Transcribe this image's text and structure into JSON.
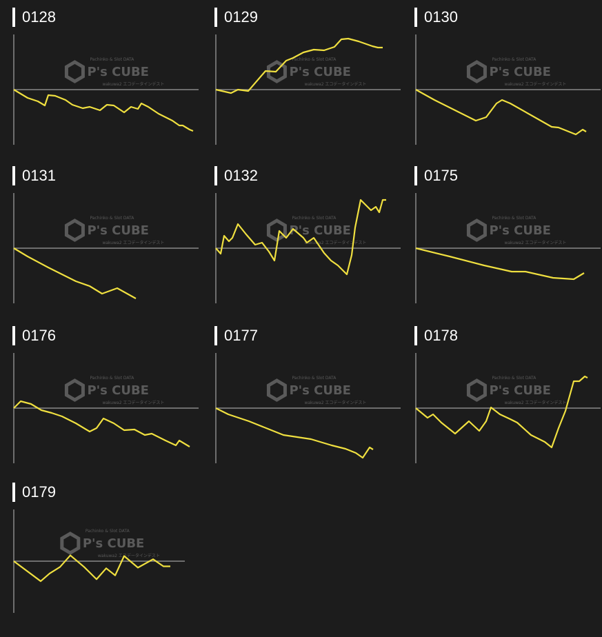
{
  "colors": {
    "background": "#1c1c1c",
    "line": "#f0e040",
    "axis": "#8a8a8a",
    "title": "#ffffff",
    "watermark": "#5a5a5a"
  },
  "watermark": {
    "brand": "P's CUBE",
    "top": "Pachinko & Slot DATA",
    "bottom": "wakuwa2 エコデータインデスト"
  },
  "chart_data": [
    {
      "type": "line",
      "title": "0128",
      "ylim": [
        -80,
        80
      ],
      "grid": false,
      "points": [
        [
          0,
          0
        ],
        [
          20,
          -12
        ],
        [
          35,
          -17
        ],
        [
          45,
          -23
        ],
        [
          50,
          -8
        ],
        [
          60,
          -9
        ],
        [
          75,
          -15
        ],
        [
          85,
          -22
        ],
        [
          100,
          -27
        ],
        [
          110,
          -25
        ],
        [
          125,
          -30
        ],
        [
          135,
          -22
        ],
        [
          145,
          -23
        ],
        [
          160,
          -33
        ],
        [
          170,
          -25
        ],
        [
          180,
          -28
        ],
        [
          185,
          -20
        ],
        [
          195,
          -25
        ],
        [
          210,
          -35
        ],
        [
          230,
          -45
        ],
        [
          240,
          -52
        ],
        [
          245,
          -52
        ],
        [
          255,
          -58
        ],
        [
          260,
          -60
        ]
      ]
    },
    {
      "type": "line",
      "title": "0129",
      "ylim": [
        -80,
        80
      ],
      "grid": false,
      "points": [
        [
          0,
          0
        ],
        [
          22,
          -5
        ],
        [
          32,
          0
        ],
        [
          47,
          -2
        ],
        [
          72,
          27
        ],
        [
          87,
          26
        ],
        [
          102,
          42
        ],
        [
          112,
          46
        ],
        [
          127,
          54
        ],
        [
          142,
          58
        ],
        [
          157,
          57
        ],
        [
          172,
          62
        ],
        [
          182,
          73
        ],
        [
          192,
          74
        ],
        [
          207,
          70
        ],
        [
          227,
          63
        ],
        [
          235,
          61
        ],
        [
          242,
          61
        ]
      ]
    },
    {
      "type": "line",
      "title": "0130",
      "ylim": [
        -80,
        80
      ],
      "grid": false,
      "points": [
        [
          0,
          0
        ],
        [
          27,
          -15
        ],
        [
          57,
          -30
        ],
        [
          87,
          -45
        ],
        [
          102,
          -40
        ],
        [
          117,
          -20
        ],
        [
          125,
          -15
        ],
        [
          137,
          -20
        ],
        [
          167,
          -37
        ],
        [
          197,
          -54
        ],
        [
          207,
          -55
        ],
        [
          232,
          -65
        ],
        [
          242,
          -58
        ],
        [
          247,
          -61
        ]
      ]
    },
    {
      "type": "line",
      "title": "0131",
      "ylim": [
        -80,
        80
      ],
      "grid": false,
      "points": [
        [
          0,
          0
        ],
        [
          20,
          -12
        ],
        [
          50,
          -28
        ],
        [
          90,
          -48
        ],
        [
          110,
          -55
        ],
        [
          128,
          -66
        ],
        [
          150,
          -58
        ],
        [
          177,
          -73
        ]
      ]
    },
    {
      "type": "line",
      "title": "0132",
      "ylim": [
        -80,
        80
      ],
      "grid": false,
      "points": [
        [
          0,
          0
        ],
        [
          7,
          -8
        ],
        [
          12,
          18
        ],
        [
          19,
          10
        ],
        [
          24,
          15
        ],
        [
          32,
          35
        ],
        [
          44,
          20
        ],
        [
          57,
          5
        ],
        [
          67,
          8
        ],
        [
          77,
          -5
        ],
        [
          85,
          -18
        ],
        [
          92,
          25
        ],
        [
          102,
          15
        ],
        [
          112,
          28
        ],
        [
          127,
          15
        ],
        [
          132,
          8
        ],
        [
          142,
          15
        ],
        [
          157,
          -7
        ],
        [
          167,
          -18
        ],
        [
          177,
          -25
        ],
        [
          190,
          -38
        ],
        [
          197,
          -10
        ],
        [
          202,
          30
        ],
        [
          210,
          70
        ],
        [
          217,
          63
        ],
        [
          225,
          55
        ],
        [
          232,
          60
        ],
        [
          237,
          52
        ],
        [
          242,
          70
        ],
        [
          247,
          70
        ]
      ]
    },
    {
      "type": "line",
      "title": "0175",
      "ylim": [
        -80,
        80
      ],
      "grid": false,
      "points": [
        [
          0,
          0
        ],
        [
          49,
          -12
        ],
        [
          99,
          -25
        ],
        [
          139,
          -34
        ],
        [
          159,
          -34
        ],
        [
          199,
          -43
        ],
        [
          229,
          -45
        ],
        [
          244,
          -36
        ]
      ]
    },
    {
      "type": "line",
      "title": "0176",
      "ylim": [
        -80,
        80
      ],
      "grid": false,
      "points": [
        [
          0,
          0
        ],
        [
          10,
          10
        ],
        [
          25,
          6
        ],
        [
          40,
          -3
        ],
        [
          55,
          -7
        ],
        [
          70,
          -12
        ],
        [
          90,
          -22
        ],
        [
          110,
          -34
        ],
        [
          120,
          -29
        ],
        [
          130,
          -15
        ],
        [
          145,
          -22
        ],
        [
          160,
          -32
        ],
        [
          175,
          -31
        ],
        [
          190,
          -39
        ],
        [
          200,
          -37
        ],
        [
          220,
          -47
        ],
        [
          235,
          -54
        ],
        [
          240,
          -47
        ],
        [
          255,
          -56
        ]
      ]
    },
    {
      "type": "line",
      "title": "0177",
      "ylim": [
        -80,
        80
      ],
      "grid": false,
      "points": [
        [
          0,
          0
        ],
        [
          18,
          -9
        ],
        [
          48,
          -19
        ],
        [
          78,
          -31
        ],
        [
          98,
          -39
        ],
        [
          118,
          -42
        ],
        [
          138,
          -45
        ],
        [
          168,
          -54
        ],
        [
          188,
          -59
        ],
        [
          203,
          -65
        ],
        [
          213,
          -72
        ],
        [
          223,
          -57
        ],
        [
          228,
          -60
        ]
      ]
    },
    {
      "type": "line",
      "title": "0178",
      "ylim": [
        -80,
        80
      ],
      "grid": false,
      "points": [
        [
          0,
          0
        ],
        [
          17,
          -14
        ],
        [
          25,
          -9
        ],
        [
          37,
          -21
        ],
        [
          57,
          -37
        ],
        [
          77,
          -19
        ],
        [
          92,
          -33
        ],
        [
          102,
          -19
        ],
        [
          109,
          1
        ],
        [
          122,
          -9
        ],
        [
          137,
          -16
        ],
        [
          147,
          -21
        ],
        [
          167,
          -39
        ],
        [
          187,
          -49
        ],
        [
          197,
          -57
        ],
        [
          207,
          -29
        ],
        [
          217,
          -4
        ],
        [
          229,
          39
        ],
        [
          237,
          39
        ],
        [
          245,
          46
        ],
        [
          249,
          44
        ]
      ]
    },
    {
      "type": "line",
      "title": "0179",
      "ylim": [
        -80,
        80
      ],
      "grid": false,
      "points": [
        [
          0,
          0
        ],
        [
          39,
          -31
        ],
        [
          52,
          -19
        ],
        [
          67,
          -9
        ],
        [
          82,
          9
        ],
        [
          102,
          -9
        ],
        [
          120,
          -28
        ],
        [
          134,
          -11
        ],
        [
          147,
          -22
        ],
        [
          160,
          8
        ],
        [
          180,
          -10
        ],
        [
          202,
          3
        ],
        [
          217,
          -8
        ],
        [
          227,
          -8
        ]
      ]
    }
  ]
}
